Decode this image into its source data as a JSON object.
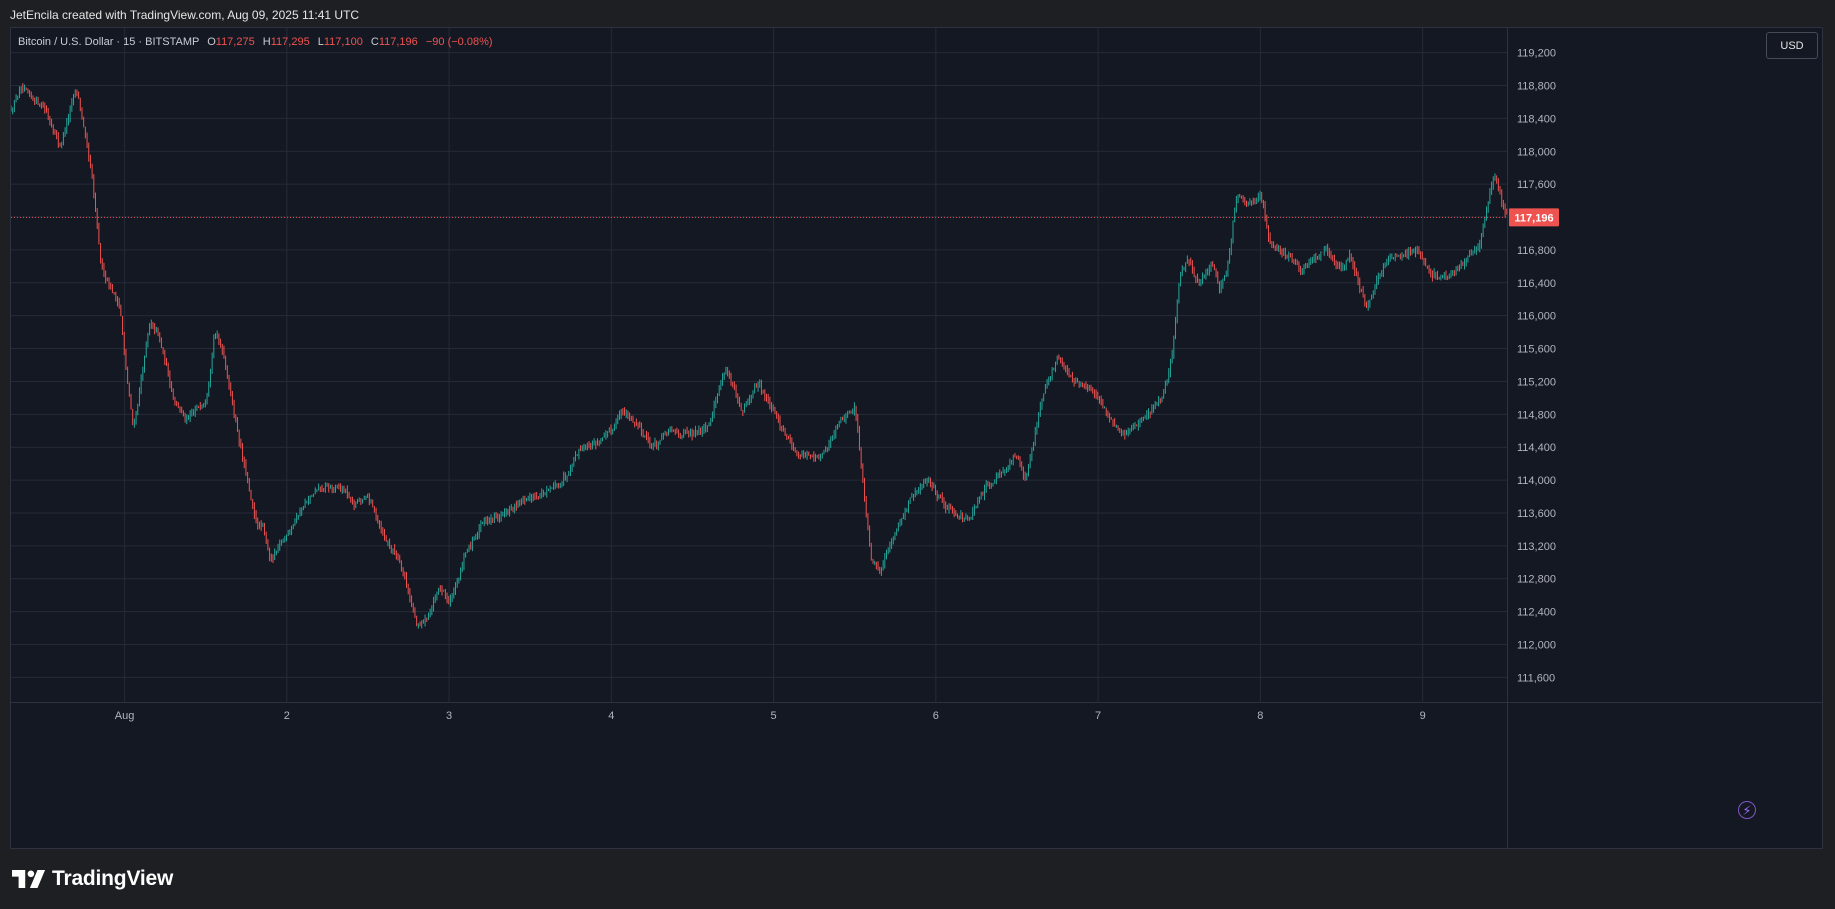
{
  "header": {
    "credit": "JetEncila created with TradingView.com, Aug 09, 2025 11:41 UTC"
  },
  "legend": {
    "symbol": "Bitcoin / U.S. Dollar · 15 · BITSTAMP",
    "open_label": "O",
    "open": "117,275",
    "high_label": "H",
    "high": "117,295",
    "low_label": "L",
    "low": "117,100",
    "close_label": "C",
    "close": "117,196",
    "change": "−90 (−0.08%)"
  },
  "currency": "USD",
  "footer": {
    "brand": "TradingView"
  },
  "colors": {
    "up": "#26a69a",
    "down": "#ef5350",
    "background": "#141823",
    "grid": "#262a37",
    "axis_text": "#b2b5be"
  },
  "chart_data": {
    "type": "candlestick",
    "symbol": "BTCUSD",
    "exchange": "BITSTAMP",
    "interval": "15",
    "currency": "USD",
    "ylim": [
      111300,
      119500
    ],
    "y_ticks": [
      111600,
      112000,
      112400,
      112800,
      113200,
      113600,
      114000,
      114400,
      114800,
      115200,
      115600,
      116000,
      116400,
      116800,
      117200,
      117600,
      118000,
      118400,
      118800,
      119200
    ],
    "y_tick_labels": [
      "111,600",
      "112,000",
      "112,400",
      "112,800",
      "113,200",
      "113,600",
      "114,000",
      "114,400",
      "114,800",
      "115,200",
      "115,600",
      "116,000",
      "116,400",
      "116,800",
      "117,200",
      "117,600",
      "118,000",
      "118,400",
      "118,800",
      "119,200"
    ],
    "x_range": [
      0.3,
      9.52
    ],
    "x_ticks": [
      1,
      2,
      3,
      4,
      5,
      6,
      7,
      8,
      9
    ],
    "x_tick_labels": [
      "Aug",
      "2",
      "3",
      "4",
      "5",
      "6",
      "7",
      "8",
      "9"
    ],
    "last_price": 117196,
    "last_price_label": "117,196",
    "path": [
      [
        0.3,
        118500
      ],
      [
        0.35,
        118750
      ],
      [
        0.5,
        118550
      ],
      [
        0.6,
        118050
      ],
      [
        0.7,
        118800
      ],
      [
        0.8,
        117600
      ],
      [
        0.85,
        116600
      ],
      [
        0.97,
        116100
      ],
      [
        1.0,
        115400
      ],
      [
        1.05,
        114600
      ],
      [
        1.15,
        115900
      ],
      [
        1.2,
        115800
      ],
      [
        1.3,
        115000
      ],
      [
        1.38,
        114700
      ],
      [
        1.45,
        114900
      ],
      [
        1.5,
        115000
      ],
      [
        1.55,
        115800
      ],
      [
        1.6,
        115600
      ],
      [
        1.7,
        114500
      ],
      [
        1.8,
        113500
      ],
      [
        1.85,
        113400
      ],
      [
        1.9,
        113000
      ],
      [
        1.95,
        113200
      ],
      [
        2.1,
        113700
      ],
      [
        2.2,
        113900
      ],
      [
        2.35,
        113900
      ],
      [
        2.4,
        113700
      ],
      [
        2.5,
        113800
      ],
      [
        2.6,
        113300
      ],
      [
        2.7,
        113000
      ],
      [
        2.8,
        112200
      ],
      [
        2.85,
        112300
      ],
      [
        2.95,
        112700
      ],
      [
        3.0,
        112500
      ],
      [
        3.1,
        113100
      ],
      [
        3.2,
        113500
      ],
      [
        3.35,
        113600
      ],
      [
        3.5,
        113800
      ],
      [
        3.6,
        113850
      ],
      [
        3.7,
        114000
      ],
      [
        3.8,
        114400
      ],
      [
        3.9,
        114450
      ],
      [
        4.0,
        114600
      ],
      [
        4.05,
        114850
      ],
      [
        4.15,
        114700
      ],
      [
        4.25,
        114400
      ],
      [
        4.35,
        114600
      ],
      [
        4.5,
        114550
      ],
      [
        4.6,
        114700
      ],
      [
        4.7,
        115400
      ],
      [
        4.75,
        115100
      ],
      [
        4.8,
        114800
      ],
      [
        4.9,
        115200
      ],
      [
        5.0,
        114800
      ],
      [
        5.15,
        114300
      ],
      [
        5.3,
        114300
      ],
      [
        5.4,
        114700
      ],
      [
        5.5,
        114900
      ],
      [
        5.55,
        113900
      ],
      [
        5.6,
        113000
      ],
      [
        5.65,
        112900
      ],
      [
        5.75,
        113400
      ],
      [
        5.85,
        113800
      ],
      [
        5.95,
        114000
      ],
      [
        6.05,
        113700
      ],
      [
        6.2,
        113500
      ],
      [
        6.3,
        113900
      ],
      [
        6.4,
        114100
      ],
      [
        6.5,
        114300
      ],
      [
        6.55,
        114000
      ],
      [
        6.6,
        114500
      ],
      [
        6.65,
        115000
      ],
      [
        6.75,
        115500
      ],
      [
        6.85,
        115200
      ],
      [
        6.95,
        115100
      ],
      [
        7.05,
        114800
      ],
      [
        7.15,
        114550
      ],
      [
        7.3,
        114800
      ],
      [
        7.4,
        115000
      ],
      [
        7.45,
        115500
      ],
      [
        7.5,
        116500
      ],
      [
        7.55,
        116700
      ],
      [
        7.6,
        116400
      ],
      [
        7.7,
        116600
      ],
      [
        7.75,
        116300
      ],
      [
        7.8,
        116700
      ],
      [
        7.85,
        117500
      ],
      [
        7.95,
        117350
      ],
      [
        8.0,
        117500
      ],
      [
        8.05,
        116900
      ],
      [
        8.15,
        116750
      ],
      [
        8.25,
        116550
      ],
      [
        8.4,
        116800
      ],
      [
        8.5,
        116550
      ],
      [
        8.55,
        116800
      ],
      [
        8.6,
        116400
      ],
      [
        8.65,
        116100
      ],
      [
        8.75,
        116600
      ],
      [
        8.85,
        116750
      ],
      [
        8.95,
        116800
      ],
      [
        9.05,
        116500
      ],
      [
        9.15,
        116450
      ],
      [
        9.25,
        116650
      ],
      [
        9.35,
        116900
      ],
      [
        9.42,
        117600
      ],
      [
        9.45,
        117700
      ],
      [
        9.5,
        117250
      ],
      [
        9.52,
        117196
      ]
    ]
  }
}
